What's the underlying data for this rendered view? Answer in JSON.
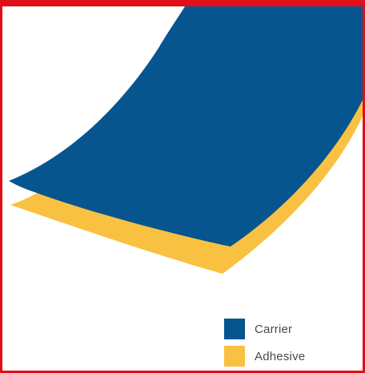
{
  "colors": {
    "frame": "#e10f17",
    "carrier": "#06558f",
    "adhesive": "#f9c142"
  },
  "legend": {
    "items": [
      {
        "label": "Carrier",
        "color": "#06558f"
      },
      {
        "label": "Adhesive",
        "color": "#f9c142"
      }
    ]
  }
}
